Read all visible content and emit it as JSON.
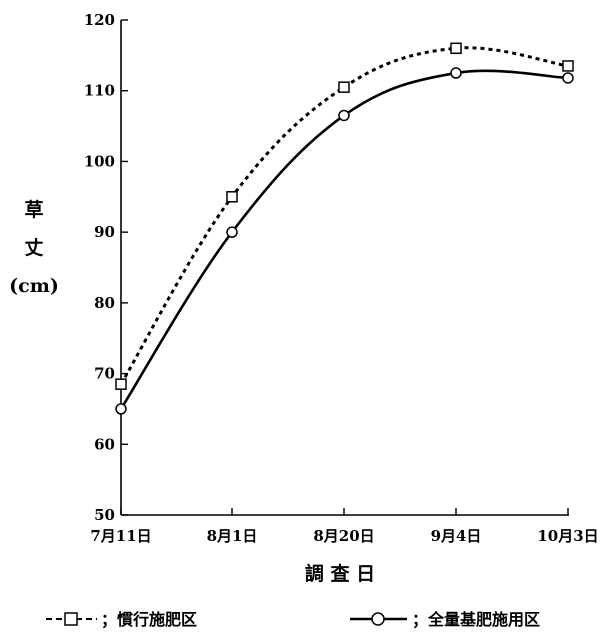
{
  "chart_data": {
    "type": "line",
    "categories": [
      "7月11日",
      "8月1日",
      "8月20日",
      "9月4日",
      "10月3日"
    ],
    "series": [
      {
        "name": "；慣行施肥区",
        "values": [
          68.5,
          95.0,
          110.5,
          116.0,
          113.5
        ],
        "marker": "square",
        "line_style": "dotted",
        "color": "#000000"
      },
      {
        "name": "；全量基肥施用区",
        "values": [
          65.0,
          90.0,
          106.5,
          112.5,
          111.8
        ],
        "marker": "circle",
        "line_style": "solid",
        "color": "#000000"
      }
    ],
    "xlabel": "調 査 日",
    "ylabel": [
      "草",
      "丈",
      "(cm)"
    ],
    "ylim": [
      50,
      120
    ],
    "yticks": [
      50,
      60,
      70,
      80,
      90,
      100,
      110,
      120
    ],
    "grid": false,
    "legend_position": "bottom"
  }
}
